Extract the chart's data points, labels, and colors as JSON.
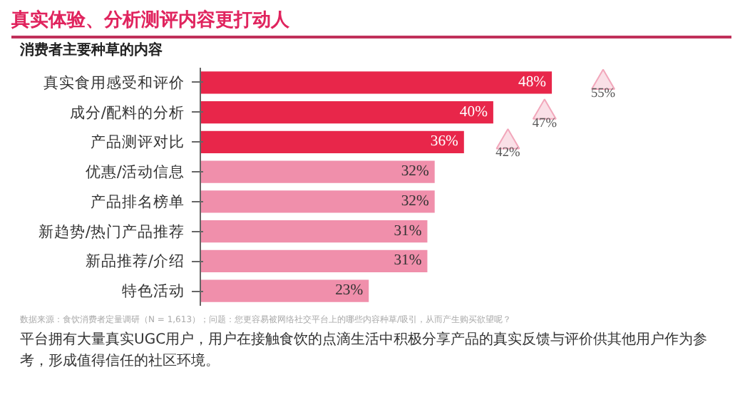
{
  "chart_data": {
    "type": "bar",
    "orientation": "horizontal",
    "title": "真实体验、分析测评内容更打动人",
    "subtitle": "消费者主要种草的内容",
    "categories": [
      "真实食用感受和评价",
      "成分/配料的分析",
      "产品测评对比",
      "优惠/活动信息",
      "产品排名榜单",
      "新趋势/热门产品推荐",
      "新品推荐/介绍",
      "特色活动"
    ],
    "series": [
      {
        "colors": [
          "#e8264a",
          "#e8264a",
          "#e8264a",
          "#f08fab",
          "#f08fab",
          "#f08fab",
          "#f08fab",
          "#f08fab"
        ],
        "values": [
          48,
          40,
          36,
          32,
          32,
          31,
          31,
          23
        ],
        "value_labels": [
          "48%",
          "40%",
          "36%",
          "32%",
          "32%",
          "31%",
          "31%",
          "23%"
        ]
      },
      {
        "type": "scatter",
        "marker": "triangle",
        "color": "#f2a7bb",
        "values": [
          55,
          47,
          42,
          null,
          null,
          null,
          null,
          null
        ],
        "value_labels": [
          "55%",
          "47%",
          "42%",
          null,
          null,
          null,
          null,
          null
        ]
      }
    ],
    "grid": false,
    "annotations": [
      "数据来源：食饮消费者定量调研（N = 1,613）；问题：您更容易被网络社交平台上的哪些内容种草/吸引，从而产生购买欲望呢？",
      "平台拥有大量真实UGC用户，用户在接触食饮的点滴生活中积极分享产品的真实反馈与评价供其他用户作为参考，形成值得信任的社区环境。"
    ]
  }
}
